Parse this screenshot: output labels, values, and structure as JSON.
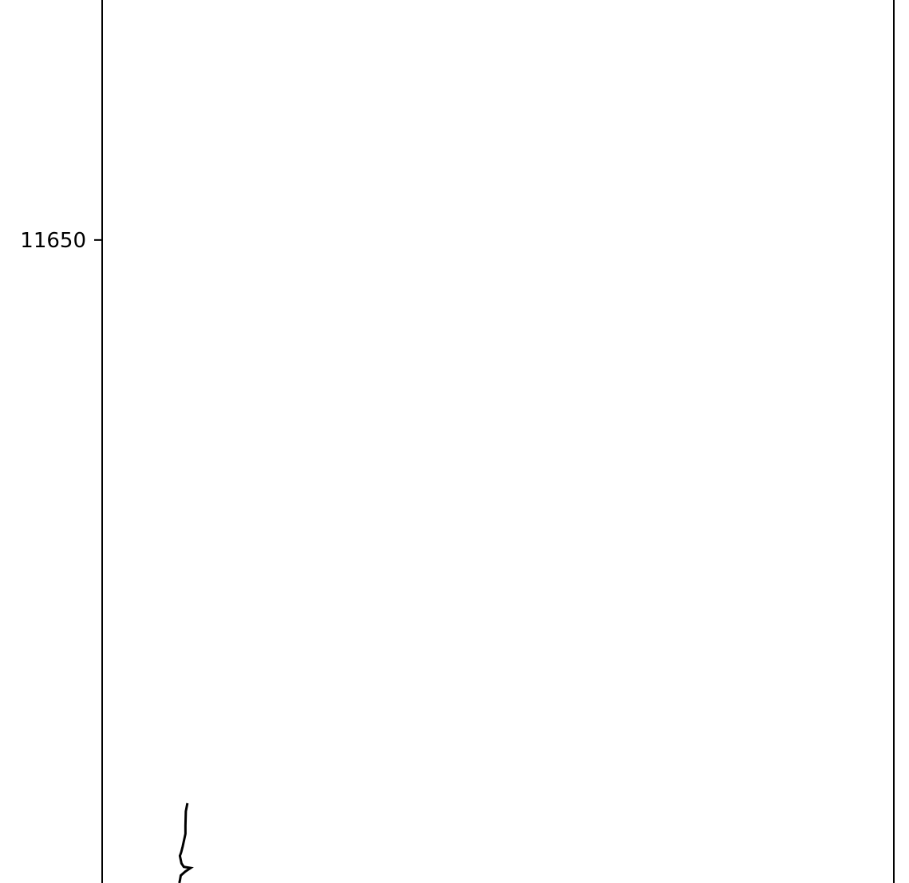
{
  "chart_data": {
    "type": "line",
    "title": "",
    "xlabel": "",
    "ylabel": "",
    "x_axis": {
      "visible": false
    },
    "y_axis": {
      "ticks": [
        11650
      ],
      "tick_labels": [
        "11650"
      ],
      "range_visible": [
        11538.8,
        11691.5
      ],
      "inverted": false
    },
    "grid": false,
    "legend": "none",
    "series": [
      {
        "line_color": "#000000",
        "points": [
          {
            "x": 0.1077,
            "y": 11552.6
          },
          {
            "x": 0.1057,
            "y": 11551.2
          },
          {
            "x": 0.1052,
            "y": 11548.7
          },
          {
            "x": 0.1052,
            "y": 11547.3
          },
          {
            "x": 0.1017,
            "y": 11545.1
          },
          {
            "x": 0.0998,
            "y": 11544.1
          },
          {
            "x": 0.0982,
            "y": 11543.5
          },
          {
            "x": 0.1002,
            "y": 11542.2
          },
          {
            "x": 0.1031,
            "y": 11541.6
          },
          {
            "x": 0.1118,
            "y": 11541.4
          },
          {
            "x": 0.1052,
            "y": 11540.8
          },
          {
            "x": 0.0993,
            "y": 11540.1
          },
          {
            "x": 0.0983,
            "y": 11539.3
          },
          {
            "x": 0.0975,
            "y": 11538.8
          }
        ]
      }
    ],
    "colors": {
      "background": "#ffffff",
      "axes": "#000000",
      "line": "#000000"
    }
  }
}
